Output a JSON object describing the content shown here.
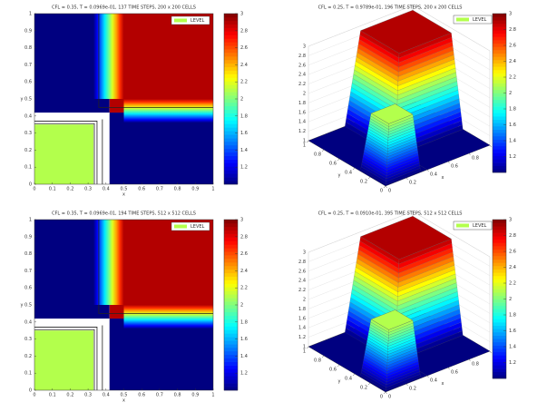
{
  "chart_data": [
    {
      "type": "contour",
      "title": "CFL = 0.35, T = 0.0969e-01, 137 TIME STEPS, 200 x 200 CELLS",
      "legend": "LEVEL",
      "xlabel": "x",
      "ylabel": "y",
      "xlim": [
        0,
        1
      ],
      "ylim": [
        0,
        1
      ],
      "xticks": [
        0,
        0.1,
        0.2,
        0.3,
        0.4,
        0.5,
        0.6,
        0.7,
        0.8,
        0.9,
        1
      ],
      "yticks": [
        0,
        0.1,
        0.2,
        0.3,
        0.4,
        0.5,
        0.6,
        0.7,
        0.8,
        0.9,
        1
      ],
      "clim": [
        1,
        3
      ],
      "cticks": [
        1.2,
        1.4,
        1.6,
        1.8,
        2,
        2.2,
        2.4,
        2.6,
        2.8,
        3
      ],
      "quadrants": {
        "upper_left": 1,
        "upper_right": 2.9,
        "lower_left": 2.1,
        "lower_right": 1
      }
    },
    {
      "type": "surface",
      "title": "CFL = 0.25, T = 0.9789e-01, 196 TIME STEPS, 200 x 200 CELLS",
      "legend": "LEVEL",
      "xlabel": "x",
      "ylabel": "y",
      "xlim": [
        0,
        1
      ],
      "ylim": [
        0,
        1
      ],
      "xticks": [
        0,
        0.2,
        0.4,
        0.6,
        0.8,
        1
      ],
      "yticks": [
        0,
        0.2,
        0.4,
        0.6,
        0.8,
        1
      ],
      "zlim": [
        1,
        3
      ],
      "zticks": [
        1,
        1.2,
        1.4,
        1.6,
        1.8,
        2,
        2.2,
        2.4,
        2.6,
        2.8,
        3
      ],
      "clim": [
        1,
        3
      ],
      "cticks": [
        1.2,
        1.4,
        1.6,
        1.8,
        2,
        2.2,
        2.4,
        2.6,
        2.8,
        3
      ],
      "quadrants": {
        "upper_left": 1,
        "upper_right": 2.9,
        "lower_left": 2.1,
        "lower_right": 1
      }
    },
    {
      "type": "contour",
      "title": "CFL = 0.35, T = 0.0969e-01, 194 TIME STEPS, 512 x 512 CELLS",
      "legend": "LEVEL",
      "xlabel": "x",
      "ylabel": "y",
      "xlim": [
        0,
        1
      ],
      "ylim": [
        0,
        1
      ],
      "xticks": [
        0,
        0.1,
        0.2,
        0.3,
        0.4,
        0.5,
        0.6,
        0.7,
        0.8,
        0.9,
        1
      ],
      "yticks": [
        0,
        0.1,
        0.2,
        0.3,
        0.4,
        0.5,
        0.6,
        0.7,
        0.8,
        0.9,
        1
      ],
      "clim": [
        1,
        3
      ],
      "cticks": [
        1.2,
        1.4,
        1.6,
        1.8,
        2,
        2.2,
        2.4,
        2.6,
        2.8,
        3
      ],
      "quadrants": {
        "upper_left": 1,
        "upper_right": 2.9,
        "lower_left": 2.1,
        "lower_right": 1
      }
    },
    {
      "type": "surface",
      "title": "CFL = 0.25, T = 0.0910e-01, 395 TIME STEPS, 512 x 512 CELLS",
      "legend": "LEVEL",
      "xlabel": "x",
      "ylabel": "y",
      "xlim": [
        0,
        1
      ],
      "ylim": [
        0,
        1
      ],
      "xticks": [
        0,
        0.2,
        0.4,
        0.6,
        0.8,
        1
      ],
      "yticks": [
        0,
        0.2,
        0.4,
        0.6,
        0.8,
        1
      ],
      "zlim": [
        1,
        3
      ],
      "zticks": [
        1,
        1.2,
        1.4,
        1.6,
        1.8,
        2,
        2.2,
        2.4,
        2.6,
        2.8,
        3
      ],
      "clim": [
        1,
        3
      ],
      "cticks": [
        1.2,
        1.4,
        1.6,
        1.8,
        2,
        2.2,
        2.4,
        2.6,
        2.8,
        3
      ],
      "quadrants": {
        "upper_left": 1,
        "upper_right": 2.9,
        "lower_left": 2.1,
        "lower_right": 1
      }
    }
  ]
}
